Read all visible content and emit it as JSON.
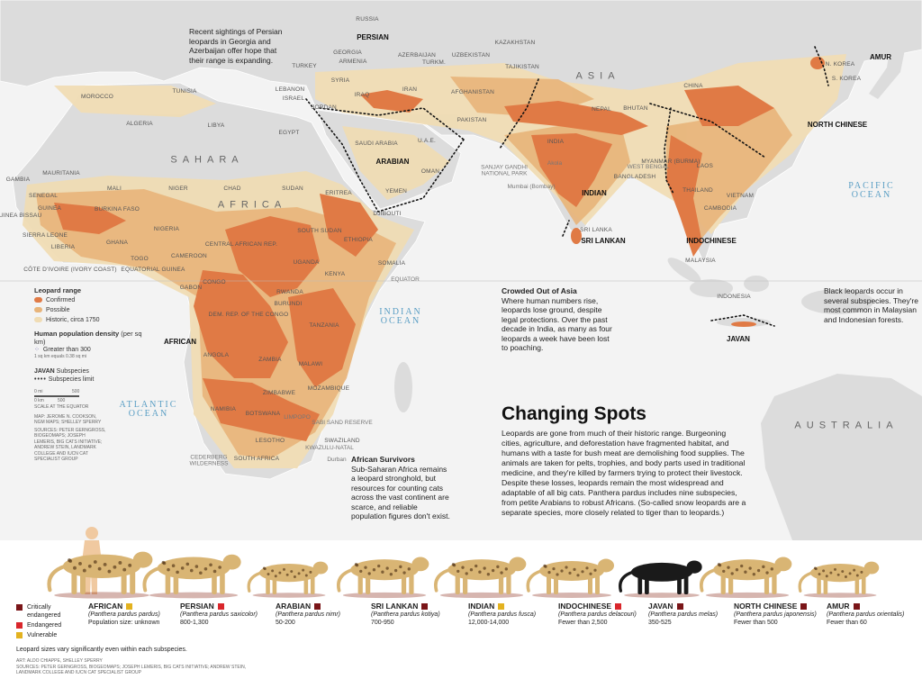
{
  "title": "Changing Spots",
  "intro": "Leopards are gone from much of their historic range. Burgeoning cities, agriculture, and deforestation have fragmented habitat, and humans with a taste for bush meat are demolishing food supplies. The animals are taken for pelts, trophies, and body parts used in traditional medicine, and they're killed by farmers trying to protect their livestock. Despite these losses, leopards remain the most widespread and adaptable of all big cats. Panthera pardus includes nine subspecies, from petite Arabians to robust Africans. (So-called snow leopards are a separate species, more closely related to tiger than to leopards.)",
  "annotations": {
    "persian": "Recent sightings of Persian leopards in Georgia and Azerbaijan offer hope that their range is expanding.",
    "asia": {
      "title": "Crowded Out of Asia",
      "text": "Where human numbers rise, leopards lose ground, despite legal protections. Over the past decade in India, as many as four leopards a week have been lost to poaching."
    },
    "black": "Black leopards occur in several subspecies. They're most common in Malaysian and Indonesian forests.",
    "africa": {
      "title": "African Survivors",
      "text": "Sub-Saharan Africa remains a leopard stronghold, but resources for counting cats across the vast continent are scarce, and reliable population figures don't exist."
    }
  },
  "legend": {
    "range_title": "Leopard range",
    "range_items": [
      {
        "label": "Confirmed",
        "color": "#e07a45"
      },
      {
        "label": "Possible",
        "color": "#e8b47a"
      },
      {
        "label": "Historic, circa 1750",
        "color": "#f0dcb4"
      }
    ],
    "density_title": "Human population density",
    "density_unit": "(per sq km)",
    "density_item": "Greater than 300",
    "density_note": "1 sq km equals 0.38 sq mi",
    "subspecies_key": "JAVAN",
    "subspecies_label": "Subspecies",
    "limit_label": "Subspecies limit",
    "scale_mi": [
      "0 mi",
      "500"
    ],
    "scale_km": [
      "0 km",
      "500"
    ],
    "scale_note": "SCALE AT THE EQUATOR",
    "credits": "MAP: JEROME N. COOKSON, NGM MAPS; SHELLEY SPERRY",
    "sources": "SOURCES: PETER GERNGROSS, BIOGEOMAPS; JOSEPH LEMERIS, BIG CATS INITIATIVE; ANDREW STEIN, LANDMARK COLLEGE AND IUCN CAT SPECIALIST GROUP"
  },
  "map": {
    "countries": [
      "RUSSIA",
      "GEORGIA",
      "ARMENIA",
      "AZERBAIJAN",
      "TURKM.",
      "UZBEKISTAN",
      "KAZAKHSTAN",
      "TAJIKISTAN",
      "TURKEY",
      "SYRIA",
      "LEBANON",
      "ISRAEL",
      "IRAQ",
      "JORDAN",
      "IRAN",
      "AFGHANISTAN",
      "PAKISTAN",
      "NEPAL",
      "BHUTAN",
      "CHINA",
      "INDIA",
      "BANGLADESH",
      "MYANMAR (BURMA)",
      "LAOS",
      "THAILAND",
      "VIETNAM",
      "CAMBODIA",
      "MALAYSIA",
      "INDONESIA",
      "SRI LANKA",
      "N. KOREA",
      "S. KOREA",
      "MOROCCO",
      "TUNISIA",
      "ALGERIA",
      "LIBYA",
      "EGYPT",
      "SAUDI ARABIA",
      "U.A.E.",
      "OMAN",
      "YEMEN",
      "ERITREA",
      "DJIBOUTI",
      "SUDAN",
      "CHAD",
      "NIGER",
      "MALI",
      "MAURITANIA",
      "GAMBIA",
      "SENEGAL",
      "GUINEA BISSAU",
      "GUINEA",
      "SIERRA LEONE",
      "LIBERIA",
      "BURKINA FASO",
      "GHANA",
      "TOGO",
      "NIGERIA",
      "CÔTE D'IVOIRE (IVORY COAST)",
      "CAMEROON",
      "EQUATORIAL GUINEA",
      "CENTRAL AFRICAN REP.",
      "SOUTH SUDAN",
      "ETHIOPIA",
      "SOMALIA",
      "UGANDA",
      "KENYA",
      "GABON",
      "CONGO",
      "RWANDA",
      "BURUNDI",
      "DEM. REP. OF THE CONGO",
      "TANZANIA",
      "ANGOLA",
      "ZAMBIA",
      "MALAWI",
      "MOZAMBIQUE",
      "ZIMBABWE",
      "NAMIBIA",
      "BOTSWANA",
      "SWAZILAND",
      "LESOTHO",
      "SOUTH AFRICA"
    ],
    "regions": [
      "ASIA",
      "SAHARA",
      "AFRICA",
      "AUSTRALIA"
    ],
    "oceans": [
      "INDIAN OCEAN",
      "ATLANTIC OCEAN",
      "PACIFIC OCEAN"
    ],
    "subspecies": [
      "PERSIAN",
      "ARABIAN",
      "INDIAN",
      "SRI LANKAN",
      "INDOCHINESE",
      "NORTH CHINESE",
      "AMUR",
      "AFRICAN",
      "JAVAN"
    ],
    "places": [
      "EQUATOR",
      "SANJAY GANDHI NATIONAL PARK",
      "Akola",
      "Mumbai (Bombay)",
      "WEST BENGAL",
      "SABI SAND RESERVE",
      "KWAZULU-NATAL",
      "Durban",
      "CEDERBERG WILDERNESS",
      "LIMPOPO"
    ]
  },
  "status_legend": [
    {
      "label": "Critically endangered",
      "color": "#7a1518"
    },
    {
      "label": "Endangered",
      "color": "#d9262b"
    },
    {
      "label": "Vulnerable",
      "color": "#e3b21f"
    }
  ],
  "subspecies": [
    {
      "name": "AFRICAN",
      "latin": "(Panthera pardus pardus)",
      "population": "Population size: unknown",
      "color": "#e3b21f"
    },
    {
      "name": "PERSIAN",
      "latin": "(Panthera pardus saxicolor)",
      "population": "800-1,300",
      "color": "#d9262b"
    },
    {
      "name": "ARABIAN",
      "latin": "(Panthera pardus nimr)",
      "population": "50-200",
      "color": "#7a1518"
    },
    {
      "name": "SRI LANKAN",
      "latin": "(Panthera pardus kotiya)",
      "population": "700-950",
      "color": "#7a1518"
    },
    {
      "name": "INDIAN",
      "latin": "(Panthera pardus fusca)",
      "population": "12,000-14,000",
      "color": "#e3b21f"
    },
    {
      "name": "INDOCHINESE",
      "latin": "(Panthera pardus delacouri)",
      "population": "Fewer than 2,500",
      "color": "#d9262b"
    },
    {
      "name": "JAVAN",
      "latin": "(Panthera pardus melas)",
      "population": "350-525",
      "color": "#7a1518"
    },
    {
      "name": "NORTH CHINESE",
      "latin": "(Panthera pardus japonensis)",
      "population": "Fewer than 500",
      "color": "#7a1518"
    },
    {
      "name": "AMUR",
      "latin": "(Panthera pardus orientalis)",
      "population": "Fewer than 60",
      "color": "#7a1518"
    }
  ],
  "footer": {
    "note": "Leopard sizes vary significantly even within each subspecies.",
    "art": "ART: ALDO CHIAPPE, SHELLEY SPERRY",
    "sources": "SOURCES: PETER GERNGROSS, BIOGEOMAPS; JOSEPH LEMERIS, BIG CATS INITIATIVE; ANDREW STEIN, LANDMARK COLLEGE AND IUCN CAT SPECIALIST GROUP"
  }
}
